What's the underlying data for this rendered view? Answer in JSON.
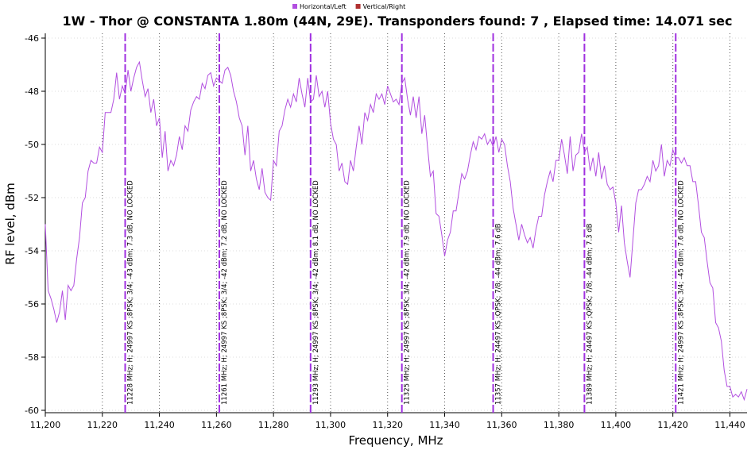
{
  "chart_data": {
    "type": "line",
    "title": "1W - Thor @ CONSTANTA 1.80m (44N, 29E). Transponders found: 7 , Elapsed time: 14.071 sec",
    "xlabel": "Frequency, MHz",
    "ylabel": "RF level, dBm",
    "xlim": [
      11200,
      11446
    ],
    "ylim": [
      -60,
      -46
    ],
    "xticks": [
      {
        "value": 11200,
        "label": "11,200"
      },
      {
        "value": 11220,
        "label": "11,220"
      },
      {
        "value": 11240,
        "label": "11,240"
      },
      {
        "value": 11260,
        "label": "11,260"
      },
      {
        "value": 11280,
        "label": "11,280"
      },
      {
        "value": 11300,
        "label": "11,300"
      },
      {
        "value": 11320,
        "label": "11,320"
      },
      {
        "value": 11340,
        "label": "11,340"
      },
      {
        "value": 11360,
        "label": "11,360"
      },
      {
        "value": 11380,
        "label": "11,380"
      },
      {
        "value": 11400,
        "label": "11,400"
      },
      {
        "value": 11420,
        "label": "11,420"
      },
      {
        "value": 11440,
        "label": "11,440"
      }
    ],
    "yticks": [
      -60,
      -58,
      -56,
      -54,
      -52,
      -50,
      -48,
      -46
    ],
    "grid": true,
    "x": [
      11200,
      11201,
      11202,
      11203,
      11204,
      11205,
      11206,
      11207,
      11208,
      11209,
      11210,
      11211,
      11212,
      11213,
      11214,
      11215,
      11216,
      11217,
      11218,
      11219,
      11220,
      11221,
      11222,
      11223,
      11224,
      11225,
      11226,
      11227,
      11228,
      11229,
      11230,
      11231,
      11232,
      11233,
      11234,
      11235,
      11236,
      11237,
      11238,
      11239,
      11240,
      11241,
      11242,
      11243,
      11244,
      11245,
      11246,
      11247,
      11248,
      11249,
      11250,
      11251,
      11252,
      11253,
      11254,
      11255,
      11256,
      11257,
      11258,
      11259,
      11260,
      11261,
      11262,
      11263,
      11264,
      11265,
      11266,
      11267,
      11268,
      11269,
      11270,
      11271,
      11272,
      11273,
      11274,
      11275,
      11276,
      11277,
      11278,
      11279,
      11280,
      11281,
      11282,
      11283,
      11284,
      11285,
      11286,
      11287,
      11288,
      11289,
      11290,
      11291,
      11292,
      11293,
      11294,
      11295,
      11296,
      11297,
      11298,
      11299,
      11300,
      11301,
      11302,
      11303,
      11304,
      11305,
      11306,
      11307,
      11308,
      11309,
      11310,
      11311,
      11312,
      11313,
      11314,
      11315,
      11316,
      11317,
      11318,
      11319,
      11320,
      11321,
      11322,
      11323,
      11324,
      11325,
      11326,
      11327,
      11328,
      11329,
      11330,
      11331,
      11332,
      11333,
      11334,
      11335,
      11336,
      11337,
      11338,
      11339,
      11340,
      11341,
      11342,
      11343,
      11344,
      11345,
      11346,
      11347,
      11348,
      11349,
      11350,
      11351,
      11352,
      11353,
      11354,
      11355,
      11356,
      11357,
      11358,
      11359,
      11360,
      11361,
      11362,
      11363,
      11364,
      11365,
      11366,
      11367,
      11368,
      11369,
      11370,
      11371,
      11372,
      11373,
      11374,
      11375,
      11376,
      11377,
      11378,
      11379,
      11380,
      11381,
      11382,
      11383,
      11384,
      11385,
      11386,
      11387,
      11388,
      11389,
      11390,
      11391,
      11392,
      11393,
      11394,
      11395,
      11396,
      11397,
      11398,
      11399,
      11400,
      11401,
      11402,
      11403,
      11404,
      11405,
      11406,
      11407,
      11408,
      11409,
      11410,
      11411,
      11412,
      11413,
      11414,
      11415,
      11416,
      11417,
      11418,
      11419,
      11420,
      11421,
      11422,
      11423,
      11424,
      11425,
      11426,
      11427,
      11428,
      11429,
      11430,
      11431,
      11432,
      11433,
      11434,
      11435,
      11436,
      11437,
      11438,
      11439,
      11440,
      11441,
      11442,
      11443,
      11444,
      11445,
      11446
    ],
    "series": [
      {
        "name": "Horizontal/Left",
        "color": "#b24fe0",
        "values": [
          -53,
          -55.5,
          -55.8,
          -56.2,
          -56.7,
          -56.3,
          -55.5,
          -56.6,
          -55.3,
          -55.5,
          -55.3,
          -54.3,
          -53.5,
          -52.2,
          -52,
          -51,
          -50.6,
          -50.7,
          -50.7,
          -50.1,
          -50.3,
          -48.8,
          -48.8,
          -48.8,
          -48.3,
          -47.3,
          -48.3,
          -47.8,
          -48.1,
          -47.2,
          -48,
          -47.5,
          -47.1,
          -46.9,
          -47.6,
          -48.2,
          -47.9,
          -48.8,
          -48.3,
          -49.3,
          -49,
          -50.5,
          -49.5,
          -51,
          -50.6,
          -50.8,
          -50.4,
          -49.7,
          -50.2,
          -49.3,
          -49.5,
          -48.7,
          -48.4,
          -48.2,
          -48.3,
          -47.7,
          -47.9,
          -47.4,
          -47.3,
          -47.8,
          -47.5,
          -47.6,
          -47.7,
          -47.2,
          -47.1,
          -47.4,
          -48,
          -48.4,
          -49,
          -49.3,
          -50.4,
          -49.3,
          -51,
          -50.6,
          -51.3,
          -51.7,
          -50.9,
          -51.8,
          -52,
          -52.1,
          -50.6,
          -50.8,
          -49.5,
          -49.3,
          -48.7,
          -48.3,
          -48.6,
          -48.1,
          -48.4,
          -47.5,
          -48.1,
          -48.6,
          -47.5,
          -48.4,
          -48.3,
          -47.4,
          -48.2,
          -48,
          -48.6,
          -48,
          -49.2,
          -49.8,
          -50,
          -51,
          -50.7,
          -51.4,
          -51.5,
          -50.6,
          -51,
          -50.1,
          -49.3,
          -50,
          -48.8,
          -49.1,
          -48.5,
          -48.8,
          -48.1,
          -48.3,
          -48.1,
          -48.5,
          -47.8,
          -48.1,
          -48.4,
          -48.3,
          -48.5,
          -47.7,
          -47.5,
          -48.3,
          -48.9,
          -48.2,
          -49,
          -48.2,
          -49.6,
          -48.9,
          -50.1,
          -51.2,
          -51,
          -52.6,
          -52.7,
          -53.4,
          -54.2,
          -53.6,
          -53.3,
          -52.5,
          -52.5,
          -51.8,
          -51.1,
          -51.3,
          -51,
          -50.4,
          -49.9,
          -50.2,
          -49.7,
          -49.8,
          -49.6,
          -50,
          -49.8,
          -50.1,
          -49.7,
          -50.3,
          -49.8,
          -50,
          -50.8,
          -51.4,
          -52.4,
          -53,
          -53.6,
          -53,
          -53.4,
          -53.7,
          -53.5,
          -53.9,
          -53.2,
          -52.7,
          -52.7,
          -51.9,
          -51.4,
          -51,
          -51.4,
          -50.6,
          -50.6,
          -49.8,
          -50.4,
          -51.1,
          -49.7,
          -51,
          -50.4,
          -50.3,
          -49.6,
          -50.3,
          -50.1,
          -51,
          -50.5,
          -51.2,
          -50.3,
          -51.3,
          -50.8,
          -51.5,
          -51.7,
          -51.6,
          -52.2,
          -53.3,
          -52.3,
          -53.7,
          -54.4,
          -55,
          -53.6,
          -52.2,
          -51.7,
          -51.7,
          -51.5,
          -51.2,
          -51.4,
          -50.6,
          -51,
          -50.8,
          -50,
          -51.2,
          -50.6,
          -50.8,
          -50.2,
          -50.5,
          -50.5,
          -50.7,
          -50.5,
          -50.8,
          -50.8,
          -51.4,
          -51.4,
          -52.3,
          -53.3,
          -53.5,
          -54.4,
          -55.2,
          -55.4,
          -56.7,
          -56.9,
          -57.4,
          -58.5,
          -59.1,
          -59.1,
          -59.5,
          -59.4,
          -59.5,
          -59.3,
          -59.6,
          -59.2
        ]
      },
      {
        "name": "Vertical/Right",
        "color": "#b03030"
      }
    ],
    "markers": [
      {
        "x": 11228,
        "label": "11228 MHz; H; 24997 KS ;8PSK; 3/4; -43 dBm; 7.3 dB, NO LOCKED"
      },
      {
        "x": 11261,
        "label": "11261 MHz; H; 24997 KS ;8PSK; 3/4; -42 dBm; 7.2 dB, NO LOCKED"
      },
      {
        "x": 11293,
        "label": "11293 MHz; H; 24997 KS ;8PSK; 3/4; -42 dBm; 8.1 dB, NO LOCKED"
      },
      {
        "x": 11325,
        "label": "11325 MHz; H; 24997 KS ;8PSK; 3/4; -42 dBm; 7.9 dB, NO LOCKED"
      },
      {
        "x": 11357,
        "label": "11357 MHz; H; 24497 KS ;QPSK; 7/8; -44 dBm; 7.6 dB"
      },
      {
        "x": 11389,
        "label": "11389 MHz; H; 24497 KS ;QPSK; 7/8; -44 dBm; 7.3 dB"
      },
      {
        "x": 11421,
        "label": "11421 MHz; H; 24997 KS ;8PSK; 3/4; -45 dBm; 7.6 dB, NO LOCKED"
      }
    ]
  }
}
